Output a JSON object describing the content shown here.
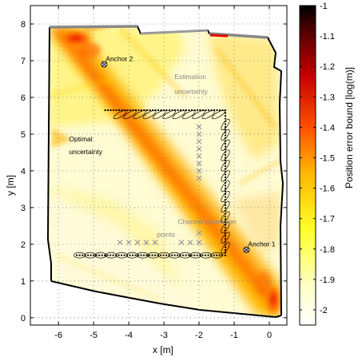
{
  "chart_data": {
    "type": "heatmap",
    "title": "",
    "xlabel": "x [m]",
    "ylabel": "y [m]",
    "xlim": [
      -6.8,
      0.5
    ],
    "ylim": [
      -0.2,
      8.5
    ],
    "xticks": [
      -6,
      -5,
      -4,
      -3,
      -2,
      -1,
      0
    ],
    "yticks": [
      0,
      1,
      2,
      3,
      4,
      5,
      6,
      7,
      8
    ],
    "grid": true,
    "colorbar": {
      "label": "Position error bound [log(m)]",
      "range": [
        -2.05,
        -1.0
      ],
      "ticks": [
        -1,
        -1.1,
        -1.2,
        -1.3,
        -1.4,
        -1.5,
        -1.6,
        -1.7,
        -1.8,
        -1.9,
        -2
      ],
      "colormap": "hot (reversed): white = low, yellow, orange, red, black = high"
    },
    "anchors": [
      {
        "label": "Anchor 2",
        "x": -4.7,
        "y": 6.9
      },
      {
        "label": "Anchor 1",
        "x": -0.65,
        "y": 1.85
      }
    ],
    "trajectory": [
      {
        "x": -5.5,
        "y": 1.7
      },
      {
        "x": -1.25,
        "y": 1.7
      },
      {
        "x": -1.25,
        "y": 5.65
      },
      {
        "x": -4.7,
        "y": 5.65
      }
    ],
    "channel_estimation_points": [
      {
        "x": -4.25,
        "y": 2.05
      },
      {
        "x": -4.0,
        "y": 2.05
      },
      {
        "x": -3.75,
        "y": 2.05
      },
      {
        "x": -3.5,
        "y": 2.05
      },
      {
        "x": -3.25,
        "y": 2.05
      },
      {
        "x": -2.5,
        "y": 2.05
      },
      {
        "x": -2.25,
        "y": 2.05
      },
      {
        "x": -2.0,
        "y": 2.05
      },
      {
        "x": -2.0,
        "y": 2.3
      },
      {
        "x": -2.0,
        "y": 3.8
      },
      {
        "x": -2.0,
        "y": 4.0
      },
      {
        "x": -2.0,
        "y": 4.2
      },
      {
        "x": -2.0,
        "y": 4.4
      },
      {
        "x": -2.0,
        "y": 4.6
      },
      {
        "x": -2.0,
        "y": 4.8
      },
      {
        "x": -2.0,
        "y": 5.0
      },
      {
        "x": -2.0,
        "y": 5.2
      }
    ],
    "annotations": [
      {
        "text": "Optimal",
        "x": -5.7,
        "y": 4.8
      },
      {
        "text": "uncertainty",
        "x": -5.7,
        "y": 4.45
      },
      {
        "text": "Estimation",
        "x": -2.7,
        "y": 6.5
      },
      {
        "text": "uncertainty",
        "x": -2.7,
        "y": 6.1
      },
      {
        "text": "Channel estimation",
        "x": -2.6,
        "y": 2.55
      },
      {
        "text": "points",
        "x": -3.2,
        "y": 2.2
      }
    ]
  }
}
